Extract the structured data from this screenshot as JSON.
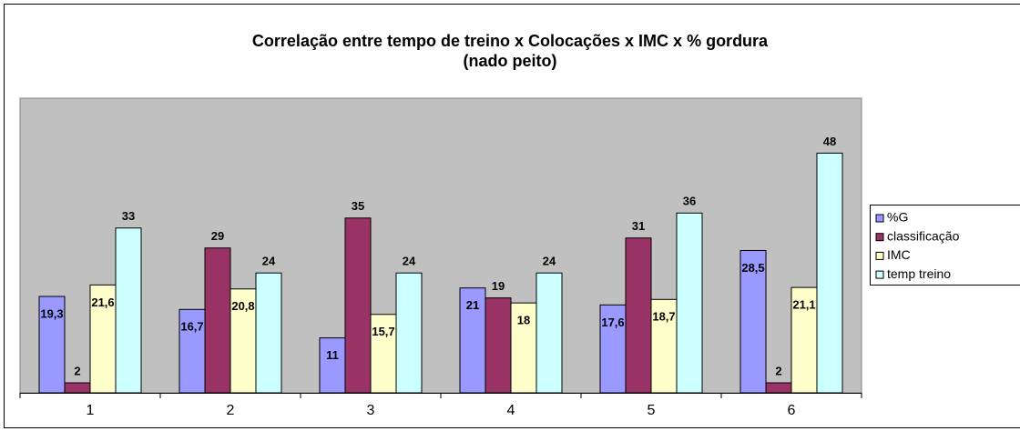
{
  "chart_data": {
    "type": "bar",
    "title": "Correlação entre tempo de treino x Colocações x IMC x % gordura",
    "subtitle": "(nado peito)",
    "categories": [
      "1",
      "2",
      "3",
      "4",
      "5",
      "6"
    ],
    "series": [
      {
        "name": "%G",
        "color": "#9999FF",
        "values": [
          19.3,
          16.7,
          11,
          21,
          17.6,
          28.5
        ],
        "value_labels": [
          "19,3",
          "16,7",
          "11",
          "21",
          "17,6",
          "28,5"
        ]
      },
      {
        "name": "classificação",
        "color": "#993366",
        "values": [
          2,
          29,
          35,
          19,
          31,
          2
        ]
      },
      {
        "name": "IMC",
        "color": "#FFFFCC",
        "values": [
          21.6,
          20.8,
          15.7,
          18,
          18.7,
          21.1
        ],
        "value_labels": [
          "21,6",
          "20,8",
          "15,7",
          "18",
          "18,7",
          "21,1"
        ]
      },
      {
        "name": "temp treino",
        "color": "#CCFFFF",
        "values": [
          33,
          24,
          24,
          24,
          36,
          48
        ]
      }
    ],
    "ylim": [
      0,
      59
    ],
    "legend": "right",
    "plot_background": "#C0C0C0"
  }
}
